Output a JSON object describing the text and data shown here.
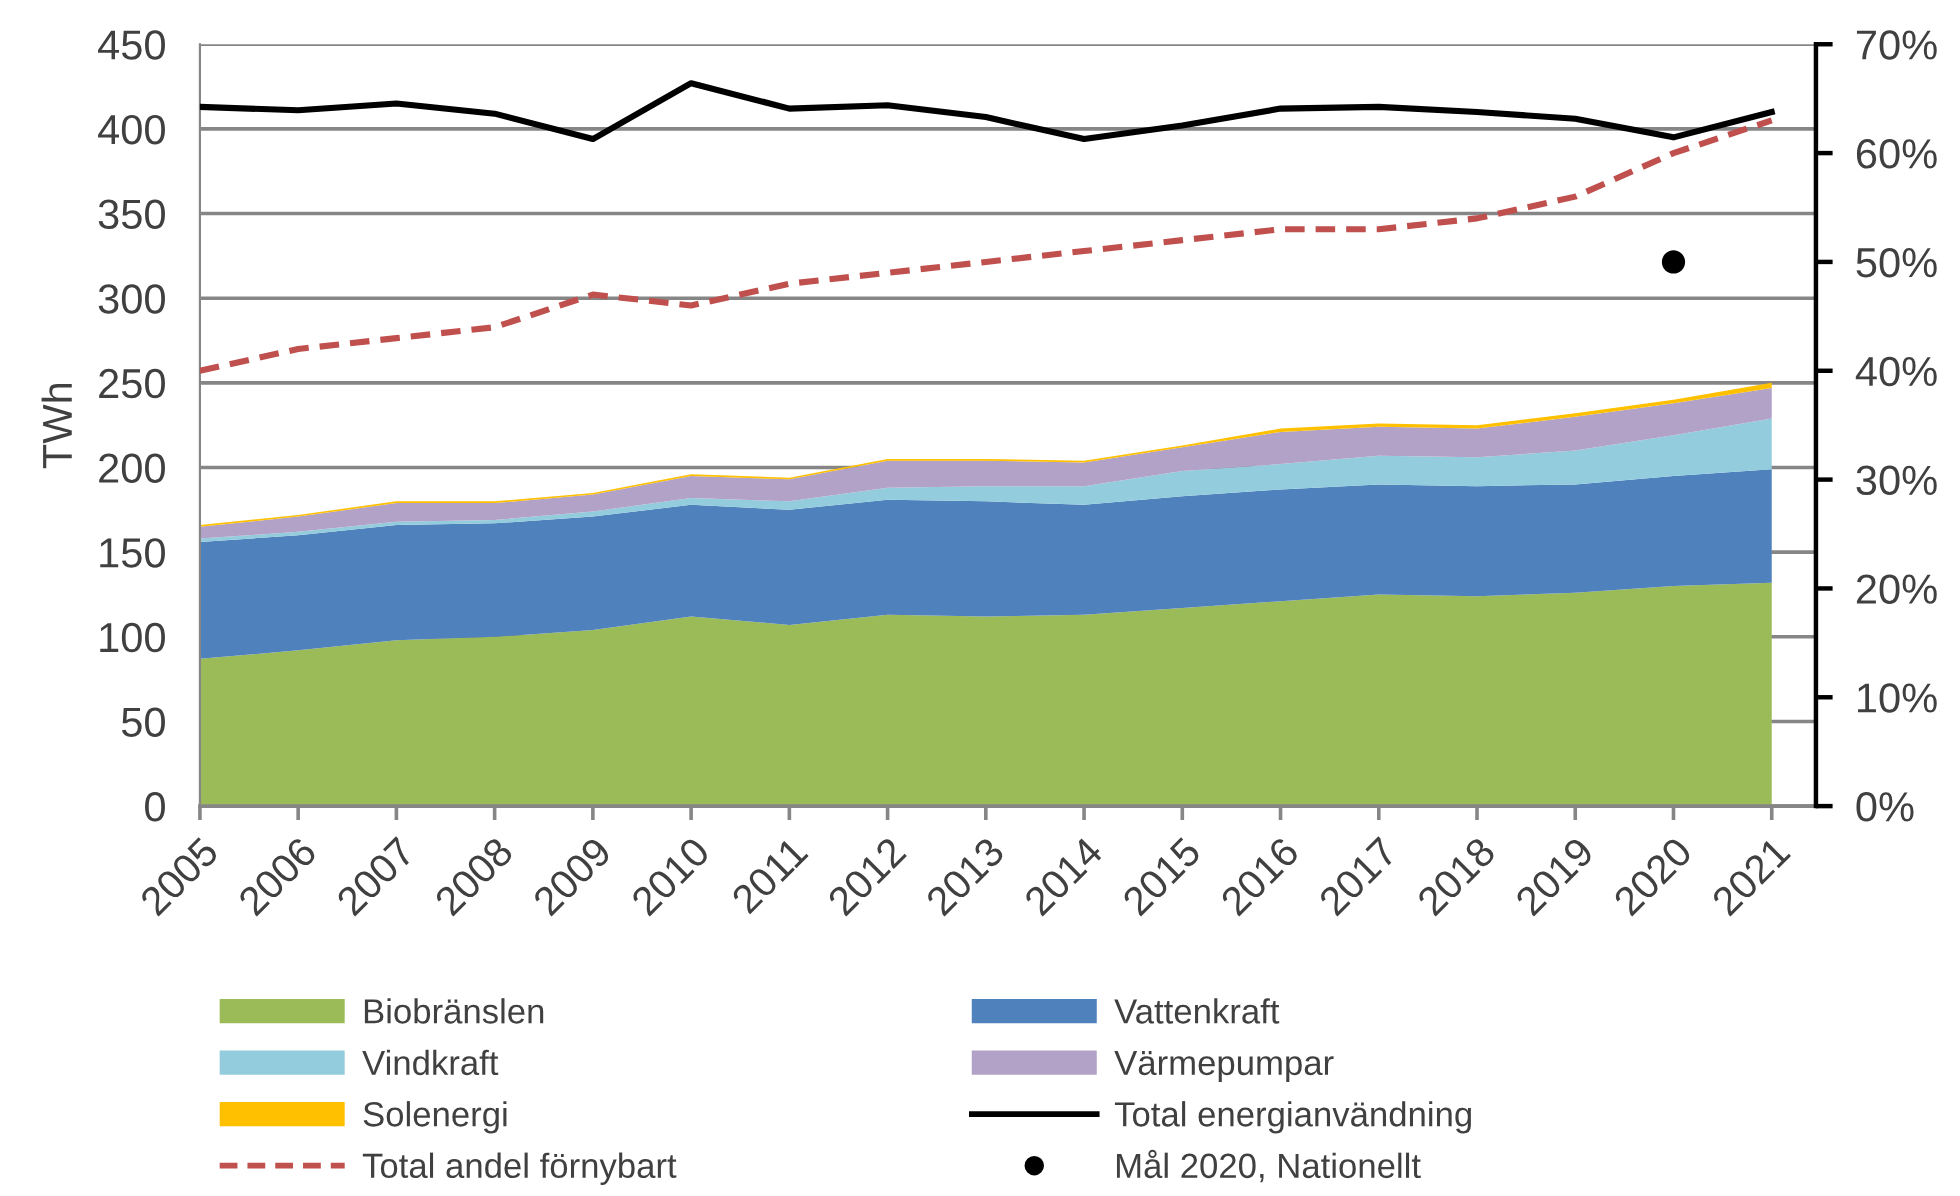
{
  "chart_data": {
    "type": "area",
    "stacked": true,
    "ylabel": "TWh",
    "categories": [
      "2005",
      "2006",
      "2007",
      "2008",
      "2009",
      "2010",
      "2011",
      "2012",
      "2013",
      "2014",
      "2015",
      "2016",
      "2017",
      "2018",
      "2019",
      "2020",
      "2021"
    ],
    "ylim": [
      0,
      450
    ],
    "yticks": [
      0,
      50,
      100,
      150,
      200,
      250,
      300,
      350,
      400,
      450
    ],
    "y2lim": [
      0,
      70
    ],
    "y2ticks": [
      {
        "value": 0,
        "label": "0%"
      },
      {
        "value": 10,
        "label": "10%"
      },
      {
        "value": 20,
        "label": "20%"
      },
      {
        "value": 30,
        "label": "30%"
      },
      {
        "value": 40,
        "label": "40%"
      },
      {
        "value": 50,
        "label": "50%"
      },
      {
        "value": 60,
        "label": "60%"
      },
      {
        "value": 70,
        "label": "70%"
      }
    ],
    "grid": "y",
    "legend": "bottom",
    "series": [
      {
        "name": "Biobränslen",
        "color": "#9bbb59",
        "values": [
          87,
          92,
          98,
          100,
          104,
          112,
          107,
          113,
          112,
          113,
          117,
          121,
          125,
          124,
          126,
          130,
          132
        ]
      },
      {
        "name": "Vattenkraft",
        "color": "#4f81bd",
        "values": [
          69,
          68,
          68,
          67,
          67,
          66,
          68,
          68,
          68,
          65,
          66,
          66,
          65,
          65,
          64,
          65,
          67
        ]
      },
      {
        "name": "Vindkraft",
        "color": "#93cddd",
        "values": [
          2,
          2,
          2,
          2,
          3,
          4,
          5,
          7,
          9,
          11,
          15,
          15,
          17,
          17,
          20,
          24,
          30
        ]
      },
      {
        "name": "Värmepumpar",
        "color": "#b3a2c7",
        "values": [
          7,
          9,
          11,
          10,
          10,
          13,
          13,
          16,
          15,
          14,
          14,
          19,
          17,
          17,
          20,
          19,
          18
        ]
      },
      {
        "name": "Solenergi",
        "color": "#ffc000",
        "values": [
          1,
          1,
          1,
          1,
          1,
          1,
          1,
          1,
          1,
          1,
          1,
          2,
          2,
          2,
          2,
          2,
          3
        ]
      },
      {
        "name": "Total energianvändning",
        "type": "line",
        "color": "#000000",
        "line_style": "solid",
        "values": [
          413,
          411,
          415,
          409,
          394,
          427,
          412,
          414,
          407,
          394,
          402,
          412,
          413,
          410,
          406,
          395,
          410
        ]
      },
      {
        "name": "Total andel förnybart",
        "type": "line",
        "axis": "y2",
        "color": "#c0504d",
        "line_style": "dashed",
        "values": [
          40,
          42,
          43,
          44,
          47,
          46,
          48,
          49,
          50,
          51,
          52,
          53,
          53,
          54,
          56,
          60,
          63
        ]
      },
      {
        "name": "Mål 2020, Nationellt",
        "type": "scatter",
        "axis": "y2",
        "color": "#000000",
        "marker": "circle",
        "values": [
          null,
          null,
          null,
          null,
          null,
          null,
          null,
          null,
          null,
          null,
          null,
          null,
          null,
          null,
          null,
          50,
          null
        ]
      }
    ]
  }
}
